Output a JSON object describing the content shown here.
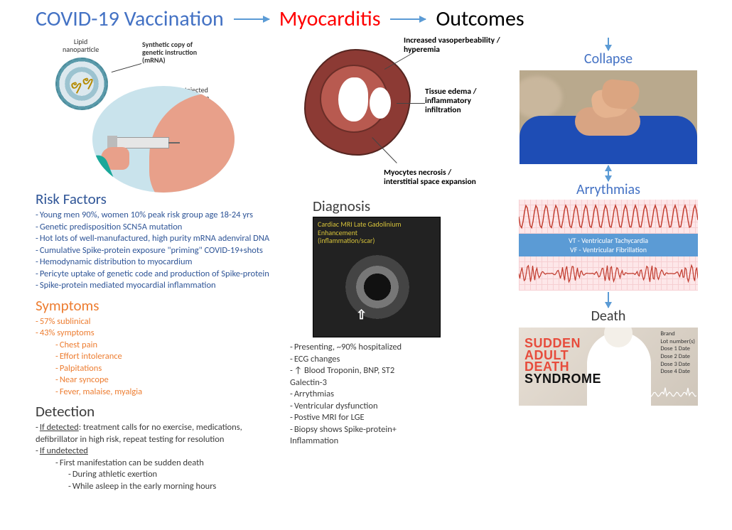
{
  "colors": {
    "title_vax": "#4472c4",
    "title_myo": "#ff0000",
    "title_out": "#000000",
    "risk_head": "#2f5597",
    "risk_text": "#2f5597",
    "symptom": "#ed7d31",
    "detect_head": "#3b3b3b",
    "detect_text": "#3b3b3b",
    "diag_head": "#3b3b3b",
    "outcome_sub": "#4472c4",
    "arrow": "#5b9bd5",
    "ecg_bg": "#fde7e9",
    "ecg_grid": "#f6cfd2",
    "ecg_line": "#c0392b",
    "ecg_band": "#5b9bd5",
    "sads_red": "#e74c3c",
    "sads_black": "#111111",
    "mri_caption": "#d6c23a",
    "heart_outer": "#8c3a34",
    "heart_inner": "#b85a50",
    "skin": "#e8a08a",
    "scrub": "#1aa89a",
    "inject_bg": "#c9e3ec",
    "shirt": "#1e4db5"
  },
  "header": {
    "vaccination": "COVID-19 Vaccination",
    "myocarditis": "Myocarditis",
    "outcomes": "Outcomes"
  },
  "vaccine_labels": {
    "lipid": "Lipid\nnanoparticle",
    "synthetic": "Synthetic copy of\ngenetic instruction\n(mRNA)",
    "injected": "Injected\ninto arm"
  },
  "risk": {
    "head": "Risk Factors",
    "items": [
      "Young men 90%, women 10% peak risk group age 18-24 yrs",
      "Genetic predisposition SCN5A mutation",
      "Hot lots of well-manufactured, high purity mRNA adenviral DNA",
      "Cumulative Spike-protein exposure \"priming\" COVID-19+shots",
      "Hemodynamic distribution to myocardium",
      "Pericyte uptake of genetic code and production of Spike-protein",
      "Spike-protein mediated myocardial inflammation"
    ]
  },
  "symptoms": {
    "head": "Symptoms",
    "items": [
      "57% sublinical",
      "43% symptoms"
    ],
    "sub": [
      "Chest pain",
      "Effort intolerance",
      "Palpitations",
      "Near syncope",
      "Fever, malaise, myalgia"
    ]
  },
  "detection": {
    "head": "Detection",
    "detected_label": "If detected",
    "detected_text": ": treatment calls for no exercise, medications, defibrillator in high risk, repeat testing for resolution",
    "undetected_label": "If undetected",
    "undetected_sub": [
      "First manifestation can be sudden death",
      "During athletic exertion",
      "While asleep in the early morning hours"
    ]
  },
  "heart_labels": {
    "a": "Increased vasoperbeability /\nhyperemia",
    "b": "Tissue edema /\ninflammatory\ninfiltration",
    "c": "Myocytes necrosis /\ninterstitial space expansion"
  },
  "diagnosis": {
    "head": "Diagnosis",
    "mri_caption": "Cardiac MRI Late Gadolinium\nEnhancement\n(inflammation/scar)",
    "items": [
      "Presenting, ~90% hospitalized",
      "ECG changes",
      "↑ Blood Troponin, BNP, ST2\n  Galectin-3",
      "Arrythmias",
      "Ventricular dysfunction",
      "Postive MRI for LGE",
      "Biopsy shows Spike-protein+\n  Inflammation"
    ]
  },
  "outcomes": {
    "collapse": "Collapse",
    "arrhythmias": "Arrythmias",
    "death": "Death",
    "ecg_band1": "VT - Ventricular Tachycardia",
    "ecg_band2": "VF - Ventricular Fibrillation",
    "sads_lines": [
      "SUDDEN",
      "ADULT",
      "DEATH",
      "SYNDROME"
    ],
    "sads_line_colors": [
      "#e74c3c",
      "#e74c3c",
      "#e74c3c",
      "#111111"
    ],
    "sads_meta": [
      "Brand",
      "Lot number(s)",
      "Dose 1 Date",
      "Dose 2 Date",
      "Dose 3 Date",
      "Dose 4 Date"
    ]
  }
}
